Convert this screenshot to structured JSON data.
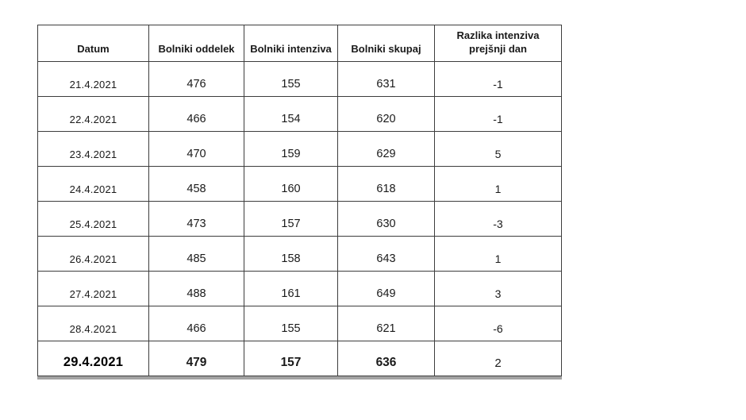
{
  "colors": {
    "oddelek": "#4472C4",
    "intenziva": "#ED7D31",
    "skupaj": "#70AD47",
    "text": "#1a1a1a",
    "border": "#3d3d3d",
    "bottom_bar": "#a3a3a3"
  },
  "chart_data": {
    "type": "table",
    "title": "",
    "columns": [
      "Datum",
      "Bolniki oddelek",
      "Bolniki intenziva",
      "Bolniki skupaj",
      "Razlika intenziva prejšnji dan"
    ],
    "rows": [
      [
        "21.4.2021",
        476,
        155,
        631,
        -1
      ],
      [
        "22.4.2021",
        466,
        154,
        620,
        -1
      ],
      [
        "23.4.2021",
        470,
        159,
        629,
        5
      ],
      [
        "24.4.2021",
        458,
        160,
        618,
        1
      ],
      [
        "25.4.2021",
        473,
        157,
        630,
        -3
      ],
      [
        "26.4.2021",
        485,
        158,
        643,
        1
      ],
      [
        "27.4.2021",
        488,
        161,
        649,
        3
      ],
      [
        "28.4.2021",
        466,
        155,
        621,
        -6
      ],
      [
        "29.4.2021",
        479,
        157,
        636,
        2
      ]
    ],
    "emphasized_row_index": 8,
    "series_colors": {
      "Bolniki oddelek": "#4472C4",
      "Bolniki intenziva": "#ED7D31",
      "Bolniki skupaj": "#70AD47"
    },
    "layout": {
      "grid": "all-borders",
      "cell_align": "center-bottom"
    }
  }
}
